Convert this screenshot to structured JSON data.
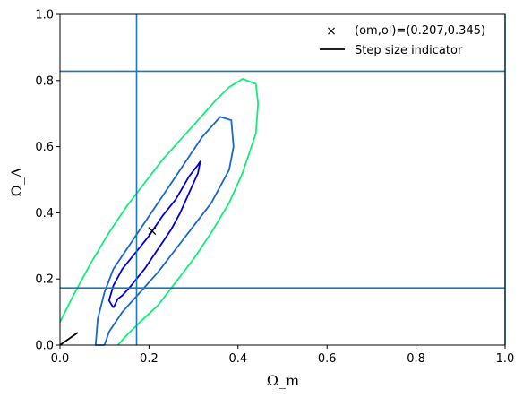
{
  "chart_data": {
    "type": "line",
    "xlabel": "Ω_m",
    "ylabel": "Ω_Λ",
    "xlim": [
      0.0,
      1.0
    ],
    "ylim": [
      0.0,
      1.0
    ],
    "x_ticks": [
      "0.0",
      "0.2",
      "0.4",
      "0.6",
      "0.8",
      "1.0"
    ],
    "y_ticks": [
      "0.0",
      "0.2",
      "0.4",
      "0.6",
      "0.8",
      "1.0"
    ],
    "grid": false,
    "legend_position": "top-right",
    "legend": [
      {
        "label": "(om,ol)=(0.207,0.345)",
        "marker": "x",
        "color": "#000000"
      },
      {
        "label": "Step size indicator",
        "marker": "line",
        "color": "#000000"
      }
    ],
    "marker_point": {
      "x": 0.207,
      "y": 0.345
    },
    "step_indicator": {
      "x": [
        0.0,
        0.04
      ],
      "y": [
        0.0,
        0.038
      ],
      "color": "#000000"
    },
    "reference_lines": {
      "color": "#1f77b4",
      "vertical_x": [
        0.172,
        1.0
      ],
      "horizontal_y": [
        0.173,
        0.828
      ]
    },
    "contours": [
      {
        "level": "inner",
        "color": "#0000dd",
        "x": [
          0.12,
          0.11,
          0.12,
          0.14,
          0.17,
          0.2,
          0.23,
          0.26,
          0.29,
          0.31,
          0.315,
          0.31,
          0.29,
          0.27,
          0.25,
          0.22,
          0.19,
          0.16,
          0.14,
          0.13,
          0.12
        ],
        "y": [
          0.113,
          0.135,
          0.18,
          0.23,
          0.28,
          0.33,
          0.39,
          0.44,
          0.51,
          0.545,
          0.555,
          0.52,
          0.46,
          0.4,
          0.35,
          0.29,
          0.23,
          0.18,
          0.15,
          0.14,
          0.113
        ]
      },
      {
        "level": "middle",
        "color": "#1a66cc",
        "x": [
          0.1,
          0.11,
          0.14,
          0.18,
          0.22,
          0.26,
          0.3,
          0.34,
          0.38,
          0.39,
          0.385,
          0.36,
          0.32,
          0.28,
          0.24,
          0.2,
          0.16,
          0.12,
          0.1,
          0.085,
          0.08,
          0.1
        ],
        "y": [
          0.0,
          0.04,
          0.1,
          0.16,
          0.22,
          0.29,
          0.36,
          0.43,
          0.53,
          0.6,
          0.68,
          0.69,
          0.63,
          0.55,
          0.47,
          0.39,
          0.31,
          0.23,
          0.16,
          0.08,
          0.0,
          0.0
        ]
      },
      {
        "level": "outer",
        "color": "#11ee77",
        "x": [
          0.13,
          0.15,
          0.18,
          0.22,
          0.26,
          0.3,
          0.34,
          0.38,
          0.41,
          0.44,
          0.445,
          0.44,
          0.41,
          0.38,
          0.35,
          0.31,
          0.27,
          0.23,
          0.19,
          0.15,
          0.11,
          0.07,
          0.03,
          0.0
        ],
        "y": [
          0.0,
          0.03,
          0.07,
          0.12,
          0.19,
          0.26,
          0.34,
          0.43,
          0.52,
          0.64,
          0.73,
          0.79,
          0.805,
          0.78,
          0.74,
          0.68,
          0.62,
          0.56,
          0.49,
          0.42,
          0.34,
          0.25,
          0.15,
          0.07
        ]
      }
    ]
  }
}
